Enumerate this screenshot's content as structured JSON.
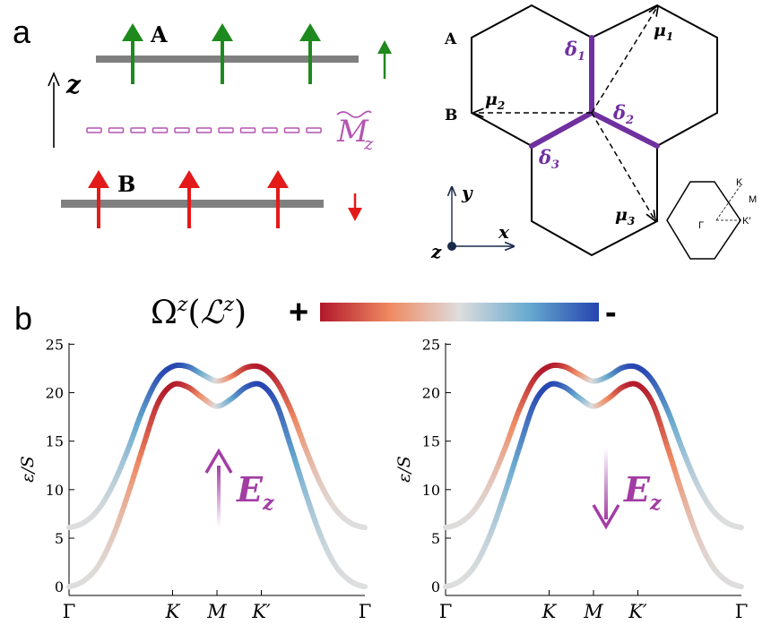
{
  "panel_a": {
    "label": "a",
    "layer_a_label": "A",
    "layer_b_label": "B",
    "z_axis_label": "z",
    "mirror_label": "M",
    "mirror_sub": "z",
    "colors": {
      "spin_up": "#1e8a1e",
      "spin_down": "#e31a1a",
      "layer": "#7f7f7f",
      "mirror": "#b455b0",
      "bond": "#7030a0"
    },
    "lattice": {
      "site_a": "A",
      "site_b": "B",
      "bonds": [
        {
          "sym": "δ",
          "sub": "1"
        },
        {
          "sym": "δ",
          "sub": "2"
        },
        {
          "sym": "δ",
          "sub": "3"
        }
      ],
      "nnn": [
        {
          "sym": "μ",
          "sub": "1"
        },
        {
          "sym": "μ",
          "sub": "2"
        },
        {
          "sym": "μ",
          "sub": "3"
        }
      ],
      "axes": {
        "x": "x",
        "y": "y",
        "z": "z"
      },
      "bz_labels": {
        "gamma": "Γ",
        "k": "K",
        "m": "M",
        "kprime": "K′"
      }
    }
  },
  "panel_b": {
    "label": "b",
    "colorbar": {
      "omega": "Ω",
      "omega_sup": "z",
      "L": "ℒ",
      "L_sup": "z",
      "plus": "+",
      "minus": "-",
      "colors": [
        "#b2182b",
        "#ef8a62",
        "#dddddd",
        "#67a9cf",
        "#2644b0"
      ]
    },
    "field_label": "E",
    "field_sub": "z",
    "field_color": "#a23da3"
  },
  "chart_data": [
    {
      "type": "line",
      "title": "",
      "xlabel": "",
      "ylabel": "ε/S",
      "ylim": [
        0,
        25
      ],
      "yticks": [
        0,
        5,
        10,
        15,
        20,
        25
      ],
      "xticks": [
        "Γ",
        "K",
        "M",
        "K′",
        "Γ"
      ],
      "x": [
        0,
        0.05,
        0.1,
        0.15,
        0.2,
        0.25,
        0.3,
        0.35,
        0.4,
        0.45,
        0.5,
        0.55,
        0.6,
        0.65,
        0.7,
        0.75,
        0.8,
        0.85,
        0.9,
        0.95,
        1
      ],
      "series": [
        {
          "values": [
            6.1,
            6.6,
            8.0,
            10.6,
            14.2,
            18.3,
            21.4,
            22.7,
            22.7,
            21.9,
            21.2,
            21.7,
            22.6,
            22.6,
            21.2,
            18.2,
            14.2,
            10.6,
            8.0,
            6.6,
            6.1
          ]
        },
        {
          "values": [
            0.0,
            0.6,
            2.2,
            5.3,
            9.6,
            14.4,
            18.9,
            20.8,
            20.6,
            19.5,
            18.6,
            19.4,
            20.6,
            20.8,
            18.9,
            14.4,
            9.6,
            5.3,
            2.2,
            0.6,
            0.0
          ]
        }
      ],
      "field_direction": "up"
    },
    {
      "type": "line",
      "title": "",
      "xlabel": "",
      "ylabel": "ε/S",
      "ylim": [
        0,
        25
      ],
      "yticks": [
        0,
        5,
        10,
        15,
        20,
        25
      ],
      "xticks": [
        "Γ",
        "K",
        "M",
        "K′",
        "Γ"
      ],
      "x": [
        0,
        0.05,
        0.1,
        0.15,
        0.2,
        0.25,
        0.3,
        0.35,
        0.4,
        0.45,
        0.5,
        0.55,
        0.6,
        0.65,
        0.7,
        0.75,
        0.8,
        0.85,
        0.9,
        0.95,
        1
      ],
      "series": [
        {
          "values": [
            6.1,
            6.6,
            8.0,
            10.6,
            14.2,
            18.3,
            21.4,
            22.7,
            22.7,
            21.9,
            21.2,
            21.7,
            22.6,
            22.6,
            21.2,
            18.2,
            14.2,
            10.6,
            8.0,
            6.6,
            6.1
          ]
        },
        {
          "values": [
            0.0,
            0.6,
            2.2,
            5.3,
            9.6,
            14.4,
            18.9,
            20.8,
            20.6,
            19.5,
            18.6,
            19.4,
            20.6,
            20.8,
            18.9,
            14.4,
            9.6,
            5.3,
            2.2,
            0.6,
            0.0
          ]
        }
      ],
      "field_direction": "down"
    }
  ]
}
